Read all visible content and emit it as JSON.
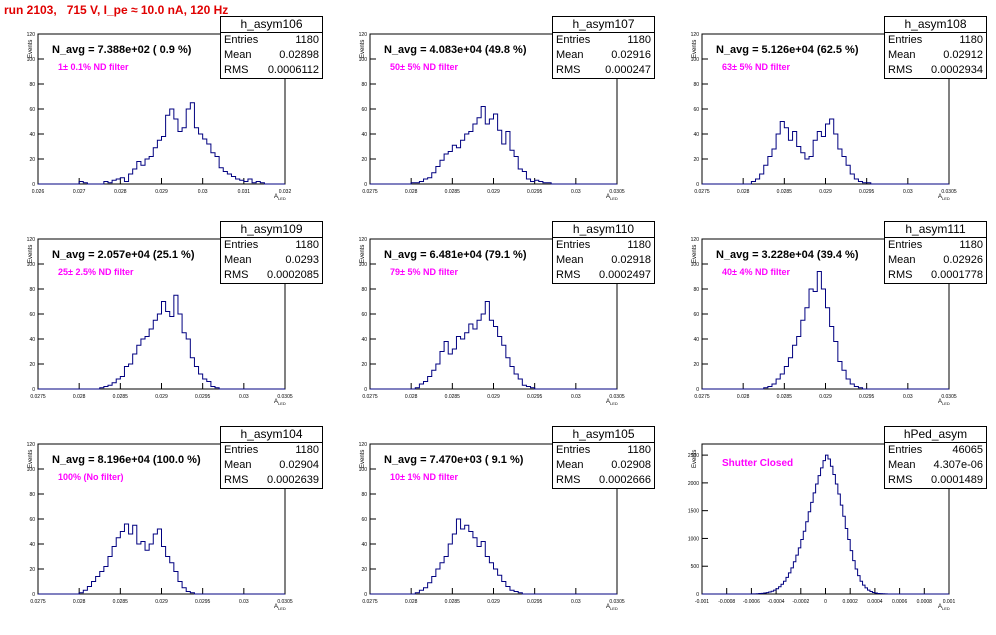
{
  "title": "run 2103,   715 V, I_pe ≈ 10.0 nA, 120 Hz",
  "y_axis_label": "Events",
  "x_axis_label": "A",
  "x_axis_sublabel": "LED",
  "chart_data": [
    {
      "type": "bar",
      "name": "h_asym106",
      "entries": "1180",
      "mean": "0.02898",
      "rms": "0.0006112",
      "n_avg": "N_avg = 7.388e+02 ( 0.9 %)",
      "filter": "1± 0.1% ND filter",
      "xlim": [
        0.026,
        0.032
      ],
      "ylim": [
        0,
        120
      ],
      "xticks": [
        "0.026",
        "0.027",
        "0.028",
        "0.029",
        "0.03",
        "0.031",
        "0.032"
      ],
      "yticks": [
        "0",
        "20",
        "40",
        "60",
        "80",
        "100",
        "120"
      ],
      "bins": {
        "start": 0.026,
        "width": 0.0001,
        "counts": [
          0,
          0,
          0,
          0,
          0,
          0,
          0,
          0,
          0,
          0,
          2,
          1,
          0,
          0,
          0,
          0,
          2,
          1,
          3,
          4,
          5,
          2,
          8,
          12,
          18,
          15,
          20,
          22,
          29,
          35,
          38,
          55,
          60,
          52,
          42,
          45,
          60,
          65,
          45,
          40,
          36,
          32,
          25,
          22,
          13,
          10,
          8,
          6,
          4,
          3,
          2,
          4,
          1,
          2,
          1,
          0,
          0,
          0,
          0,
          0
        ]
      }
    },
    {
      "type": "bar",
      "name": "h_asym107",
      "entries": "1180",
      "mean": "0.02916",
      "rms": "0.000247",
      "n_avg": "N_avg = 4.083e+04 (49.8 %)",
      "filter": "50± 5% ND filter",
      "xlim": [
        0.0275,
        0.0305
      ],
      "ylim": [
        0,
        120
      ],
      "xticks": [
        "0.0275",
        "0.028",
        "0.0285",
        "0.029",
        "0.0295",
        "0.03",
        "0.0305"
      ],
      "yticks": [
        "0",
        "20",
        "40",
        "60",
        "80",
        "100",
        "120"
      ],
      "bins": {
        "start": 0.0275,
        "width": 5e-05,
        "counts": [
          0,
          0,
          0,
          0,
          0,
          0,
          0,
          0,
          0,
          0,
          1,
          1,
          2,
          4,
          5,
          9,
          14,
          19,
          24,
          26,
          31,
          29,
          35,
          40,
          42,
          48,
          53,
          62,
          48,
          52,
          56,
          43,
          32,
          42,
          27,
          22,
          12,
          10,
          4,
          2,
          3,
          2,
          1,
          1,
          0,
          0,
          0,
          0,
          0,
          0,
          0,
          0,
          0,
          0,
          0,
          0,
          0,
          0,
          0,
          0
        ]
      }
    },
    {
      "type": "bar",
      "name": "h_asym108",
      "entries": "1180",
      "mean": "0.02912",
      "rms": "0.0002934",
      "n_avg": "N_avg = 5.126e+04 (62.5 %)",
      "filter": "63± 5% ND filter",
      "xlim": [
        0.0275,
        0.0305
      ],
      "ylim": [
        0,
        120
      ],
      "xticks": [
        "0.0275",
        "0.028",
        "0.0285",
        "0.029",
        "0.0295",
        "0.03",
        "0.0305"
      ],
      "yticks": [
        "0",
        "20",
        "40",
        "60",
        "80",
        "100",
        "120"
      ],
      "bins": {
        "start": 0.0275,
        "width": 5e-05,
        "counts": [
          0,
          0,
          0,
          0,
          0,
          0,
          0,
          0,
          0,
          0,
          0,
          0,
          2,
          4,
          8,
          15,
          22,
          28,
          40,
          50,
          45,
          35,
          42,
          30,
          25,
          20,
          22,
          35,
          42,
          38,
          48,
          52,
          40,
          28,
          22,
          15,
          8,
          4,
          2,
          1,
          1,
          0,
          0,
          0,
          0,
          0,
          0,
          0,
          0,
          0,
          0,
          0,
          0,
          0,
          0,
          0,
          0,
          0,
          0,
          0
        ]
      }
    },
    {
      "type": "bar",
      "name": "h_asym109",
      "entries": "1180",
      "mean": "0.0293",
      "rms": "0.0002085",
      "n_avg": "N_avg = 2.057e+04 (25.1 %)",
      "filter": "25± 2.5% ND filter",
      "xlim": [
        0.0275,
        0.0305
      ],
      "ylim": [
        0,
        120
      ],
      "xticks": [
        "0.0275",
        "0.028",
        "0.0285",
        "0.029",
        "0.0295",
        "0.03",
        "0.0305"
      ],
      "yticks": [
        "0",
        "20",
        "40",
        "60",
        "80",
        "100",
        "120"
      ],
      "bins": {
        "start": 0.0275,
        "width": 5e-05,
        "counts": [
          0,
          0,
          0,
          0,
          0,
          0,
          0,
          0,
          0,
          0,
          0,
          0,
          0,
          0,
          0,
          1,
          2,
          3,
          5,
          8,
          10,
          18,
          20,
          28,
          35,
          40,
          42,
          48,
          55,
          60,
          70,
          62,
          58,
          75,
          60,
          45,
          40,
          25,
          18,
          12,
          8,
          6,
          2,
          1,
          0,
          0,
          0,
          0,
          0,
          0,
          0,
          0,
          0,
          0,
          0,
          0,
          0,
          0,
          0,
          0
        ]
      }
    },
    {
      "type": "bar",
      "name": "h_asym110",
      "entries": "1180",
      "mean": "0.02918",
      "rms": "0.0002497",
      "n_avg": "N_avg = 6.481e+04 (79.1 %)",
      "filter": "79± 5% ND filter",
      "xlim": [
        0.0275,
        0.0305
      ],
      "ylim": [
        0,
        120
      ],
      "xticks": [
        "0.0275",
        "0.028",
        "0.0285",
        "0.029",
        "0.0295",
        "0.03",
        "0.0305"
      ],
      "yticks": [
        "0",
        "20",
        "40",
        "60",
        "80",
        "100",
        "120"
      ],
      "bins": {
        "start": 0.0275,
        "width": 5e-05,
        "counts": [
          0,
          0,
          0,
          0,
          0,
          0,
          0,
          0,
          0,
          0,
          0,
          1,
          4,
          6,
          10,
          15,
          20,
          30,
          38,
          28,
          32,
          42,
          40,
          45,
          52,
          48,
          55,
          60,
          70,
          55,
          50,
          42,
          35,
          25,
          18,
          12,
          8,
          3,
          2,
          1,
          0,
          0,
          0,
          0,
          0,
          0,
          0,
          0,
          0,
          0,
          0,
          0,
          0,
          0,
          0,
          0,
          0,
          0,
          0,
          0
        ]
      }
    },
    {
      "type": "bar",
      "name": "h_asym111",
      "entries": "1180",
      "mean": "0.02926",
      "rms": "0.0001778",
      "n_avg": "N_avg = 3.228e+04 (39.4 %)",
      "filter": "40± 4% ND filter",
      "xlim": [
        0.0275,
        0.0305
      ],
      "ylim": [
        0,
        120
      ],
      "xticks": [
        "0.0275",
        "0.028",
        "0.0285",
        "0.029",
        "0.0295",
        "0.03",
        "0.0305"
      ],
      "yticks": [
        "0",
        "20",
        "40",
        "60",
        "80",
        "100",
        "120"
      ],
      "bins": {
        "start": 0.0275,
        "width": 5e-05,
        "counts": [
          0,
          0,
          0,
          0,
          0,
          0,
          0,
          0,
          0,
          0,
          0,
          0,
          0,
          0,
          0,
          1,
          2,
          4,
          8,
          12,
          18,
          25,
          35,
          42,
          55,
          65,
          80,
          78,
          94,
          80,
          65,
          50,
          38,
          22,
          15,
          8,
          4,
          2,
          1,
          0,
          0,
          0,
          0,
          0,
          0,
          0,
          0,
          0,
          0,
          0,
          0,
          0,
          0,
          0,
          0,
          0,
          0,
          0,
          0,
          0
        ]
      }
    },
    {
      "type": "bar",
      "name": "h_asym104",
      "entries": "1180",
      "mean": "0.02904",
      "rms": "0.0002639",
      "n_avg": "N_avg = 8.196e+04 (100.0 %)",
      "filter": "100% (No filter)",
      "xlim": [
        0.0275,
        0.0305
      ],
      "ylim": [
        0,
        120
      ],
      "xticks": [
        "0.0275",
        "0.028",
        "0.0285",
        "0.029",
        "0.0295",
        "0.03",
        "0.0305"
      ],
      "yticks": [
        "0",
        "20",
        "40",
        "60",
        "80",
        "100",
        "120"
      ],
      "bins": {
        "start": 0.0275,
        "width": 5e-05,
        "counts": [
          0,
          0,
          0,
          0,
          0,
          0,
          0,
          0,
          0,
          0,
          1,
          3,
          6,
          10,
          14,
          18,
          22,
          30,
          38,
          45,
          50,
          56,
          48,
          55,
          40,
          42,
          35,
          40,
          48,
          52,
          38,
          30,
          25,
          18,
          10,
          5,
          2,
          1,
          0,
          0,
          0,
          0,
          0,
          0,
          0,
          0,
          0,
          0,
          0,
          0,
          0,
          0,
          0,
          0,
          0,
          0,
          0,
          0,
          0,
          0
        ]
      }
    },
    {
      "type": "bar",
      "name": "h_asym105",
      "entries": "1180",
      "mean": "0.02908",
      "rms": "0.0002666",
      "n_avg": "N_avg = 7.470e+03 ( 9.1 %)",
      "filter": "10± 1% ND filter",
      "xlim": [
        0.0275,
        0.0305
      ],
      "ylim": [
        0,
        120
      ],
      "xticks": [
        "0.0275",
        "0.028",
        "0.0285",
        "0.029",
        "0.0295",
        "0.03",
        "0.0305"
      ],
      "yticks": [
        "0",
        "20",
        "40",
        "60",
        "80",
        "100",
        "120"
      ],
      "bins": {
        "start": 0.0275,
        "width": 5e-05,
        "counts": [
          0,
          0,
          0,
          0,
          0,
          0,
          0,
          0,
          0,
          0,
          0,
          1,
          3,
          5,
          9,
          14,
          20,
          25,
          30,
          40,
          48,
          60,
          52,
          55,
          50,
          45,
          38,
          42,
          30,
          25,
          20,
          15,
          10,
          6,
          3,
          2,
          1,
          0,
          0,
          0,
          0,
          0,
          0,
          0,
          0,
          0,
          0,
          0,
          0,
          0,
          0,
          0,
          0,
          0,
          0,
          0,
          0,
          0,
          0,
          0
        ]
      }
    },
    {
      "type": "bar",
      "name": "hPed_asym",
      "entries": "46065",
      "mean": "4.307e-06",
      "rms": "0.0001489",
      "n_avg": "",
      "filter": "Shutter Closed",
      "xlim": [
        -0.001,
        0.001
      ],
      "ylim": [
        0,
        2700
      ],
      "xticks": [
        "-0.001",
        "-0.0008",
        "-0.0006",
        "-0.0004",
        "-0.0002",
        "0",
        "0.0002",
        "0.0004",
        "0.0006",
        "0.0008",
        "0.001"
      ],
      "yticks": [
        "0",
        "500",
        "1000",
        "1500",
        "2000",
        "2500"
      ],
      "bins": {
        "start": -0.001,
        "width": 2e-05,
        "counts": [
          0,
          0,
          0,
          0,
          0,
          0,
          0,
          0,
          0,
          0,
          0,
          0,
          0,
          0,
          0,
          0,
          0,
          0,
          0,
          0,
          2,
          3,
          5,
          8,
          12,
          18,
          25,
          35,
          50,
          70,
          95,
          130,
          175,
          230,
          300,
          380,
          470,
          580,
          700,
          830,
          980,
          1130,
          1300,
          1480,
          1650,
          1820,
          1980,
          2130,
          2270,
          2400,
          2500,
          2430,
          2300,
          2150,
          1980,
          1800,
          1600,
          1400,
          1180,
          980,
          780,
          600,
          450,
          330,
          230,
          160,
          110,
          70,
          45,
          28,
          18,
          10,
          6,
          4,
          2,
          1,
          0,
          0,
          0,
          0,
          0,
          0,
          0,
          0,
          0,
          0,
          0,
          0,
          0,
          0,
          0,
          0,
          0,
          0,
          0,
          0,
          0,
          0,
          0,
          0
        ]
      }
    }
  ]
}
